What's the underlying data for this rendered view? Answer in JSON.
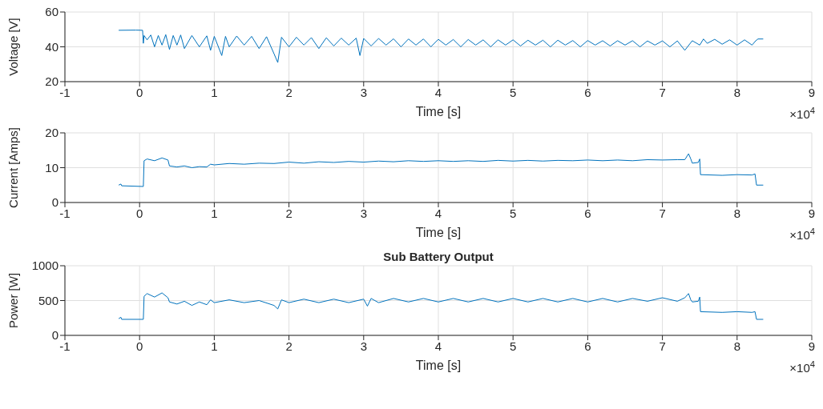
{
  "chart_data": [
    {
      "type": "line",
      "xlabel": "Time [s]",
      "ylabel": "Voltage [V]",
      "annotations": [
        "×10$^{4}$"
      ],
      "grid": true,
      "xlim": [
        -1,
        9
      ],
      "xticks": [
        -1,
        0,
        1,
        2,
        3,
        4,
        5,
        6,
        7,
        8,
        9
      ],
      "ylim": [
        20,
        60
      ],
      "yticks": [
        20,
        40,
        60
      ],
      "series": [
        {
          "color": "#0072bd",
          "x": [
            -0.28,
            -0.05,
            0.04,
            0.05,
            0.06,
            0.1,
            0.15,
            0.2,
            0.25,
            0.3,
            0.35,
            0.4,
            0.45,
            0.5,
            0.55,
            0.6,
            0.7,
            0.8,
            0.9,
            0.95,
            1,
            1.1,
            1.15,
            1.2,
            1.3,
            1.4,
            1.5,
            1.6,
            1.7,
            1.8,
            1.85,
            1.9,
            2,
            2.1,
            2.2,
            2.3,
            2.4,
            2.5,
            2.6,
            2.7,
            2.8,
            2.9,
            2.95,
            3,
            3.1,
            3.2,
            3.3,
            3.4,
            3.5,
            3.6,
            3.7,
            3.8,
            3.9,
            4,
            4.1,
            4.2,
            4.3,
            4.4,
            4.5,
            4.6,
            4.7,
            4.8,
            4.9,
            5,
            5.1,
            5.2,
            5.3,
            5.4,
            5.5,
            5.6,
            5.7,
            5.8,
            5.9,
            6,
            6.1,
            6.2,
            6.3,
            6.4,
            6.5,
            6.6,
            6.7,
            6.8,
            6.9,
            7,
            7.1,
            7.2,
            7.3,
            7.4,
            7.5,
            7.55,
            7.6,
            7.7,
            7.8,
            7.9,
            8,
            8.1,
            8.2,
            8.25,
            8.28,
            8.35
          ],
          "values": [
            49.5,
            49.6,
            49.5,
            42,
            46.5,
            44,
            46.8,
            40,
            46.5,
            41,
            47,
            38.5,
            46.5,
            41,
            46.8,
            39,
            46.5,
            40,
            46.3,
            38,
            46,
            35,
            46,
            40,
            46.2,
            41,
            46,
            39,
            45.8,
            36,
            31,
            45.5,
            40,
            45.5,
            41,
            45.3,
            39,
            45.2,
            40.5,
            45,
            41,
            45,
            35,
            44.8,
            40.5,
            44.8,
            41,
            44.6,
            40,
            44.5,
            41,
            44.5,
            40,
            44.3,
            41,
            44.2,
            40,
            44.2,
            41,
            44,
            40,
            44,
            41,
            44,
            40.5,
            43.8,
            41,
            43.8,
            40,
            43.8,
            41,
            43.6,
            40,
            43.6,
            41,
            43.5,
            40.5,
            43.5,
            41,
            43.5,
            40,
            43.4,
            41,
            43.4,
            40,
            43.4,
            38,
            43.5,
            41,
            44.5,
            42,
            44.3,
            41.5,
            44,
            41,
            44,
            41,
            43.5,
            44.5,
            44.5
          ]
        }
      ]
    },
    {
      "type": "line",
      "xlabel": "Time [s]",
      "ylabel": "Current [Amps]",
      "annotations": [
        "×10$^{4}$"
      ],
      "grid": true,
      "xlim": [
        -1,
        9
      ],
      "xticks": [
        -1,
        0,
        1,
        2,
        3,
        4,
        5,
        6,
        7,
        8,
        9
      ],
      "ylim": [
        0,
        20
      ],
      "yticks": [
        0,
        10,
        20
      ],
      "series": [
        {
          "color": "#0072bd",
          "x": [
            -0.28,
            -0.25,
            -0.24,
            0.05,
            0.06,
            0.1,
            0.2,
            0.3,
            0.38,
            0.4,
            0.5,
            0.6,
            0.7,
            0.8,
            0.9,
            0.95,
            1,
            1.2,
            1.4,
            1.6,
            1.8,
            2,
            2.2,
            2.4,
            2.6,
            2.8,
            3,
            3.2,
            3.4,
            3.6,
            3.8,
            4,
            4.2,
            4.4,
            4.6,
            4.8,
            5,
            5.2,
            5.4,
            5.6,
            5.8,
            6,
            6.2,
            6.4,
            6.6,
            6.8,
            7,
            7.2,
            7.3,
            7.35,
            7.38,
            7.4,
            7.48,
            7.5,
            7.51,
            7.8,
            8,
            8.2,
            8.24,
            8.26,
            8.35
          ],
          "values": [
            5,
            5.3,
            4.8,
            4.6,
            12,
            12.5,
            12,
            12.8,
            12.2,
            10.5,
            10.2,
            10.5,
            10,
            10.3,
            10.2,
            11,
            10.8,
            11.2,
            11,
            11.3,
            11.2,
            11.6,
            11.3,
            11.7,
            11.5,
            11.8,
            11.6,
            11.9,
            11.7,
            12,
            11.8,
            12,
            11.8,
            12,
            11.8,
            12.1,
            11.9,
            12.1,
            11.9,
            12.1,
            12,
            12.2,
            12,
            12.2,
            12,
            12.3,
            12.2,
            12.3,
            12.3,
            14,
            12.5,
            11.3,
            11.5,
            12.5,
            8,
            7.8,
            8,
            7.9,
            8.2,
            5,
            5
          ]
        }
      ]
    },
    {
      "type": "line",
      "title": "Sub Battery Output",
      "xlabel": "Time [s]",
      "ylabel": "Power [W]",
      "annotations": [
        "×10$^{4}$"
      ],
      "grid": true,
      "xlim": [
        -1,
        9
      ],
      "xticks": [
        -1,
        0,
        1,
        2,
        3,
        4,
        5,
        6,
        7,
        8,
        9
      ],
      "ylim": [
        0,
        1000
      ],
      "yticks": [
        0,
        500,
        1000
      ],
      "series": [
        {
          "color": "#0072bd",
          "x": [
            -0.28,
            -0.25,
            -0.24,
            0.05,
            0.06,
            0.1,
            0.2,
            0.3,
            0.38,
            0.4,
            0.5,
            0.6,
            0.7,
            0.8,
            0.9,
            0.95,
            1,
            1.2,
            1.4,
            1.6,
            1.8,
            1.85,
            1.9,
            2,
            2.2,
            2.4,
            2.6,
            2.8,
            3,
            3.05,
            3.1,
            3.2,
            3.4,
            3.6,
            3.8,
            4,
            4.2,
            4.4,
            4.6,
            4.8,
            5,
            5.2,
            5.4,
            5.6,
            5.8,
            6,
            6.2,
            6.4,
            6.6,
            6.8,
            7,
            7.2,
            7.3,
            7.35,
            7.38,
            7.4,
            7.48,
            7.5,
            7.51,
            7.8,
            8,
            8.2,
            8.24,
            8.26,
            8.35
          ],
          "values": [
            240,
            260,
            230,
            230,
            560,
            600,
            550,
            610,
            540,
            480,
            450,
            490,
            430,
            480,
            440,
            510,
            470,
            510,
            470,
            500,
            430,
            380,
            510,
            470,
            520,
            470,
            520,
            470,
            520,
            420,
            530,
            470,
            530,
            480,
            530,
            480,
            530,
            480,
            530,
            480,
            530,
            480,
            530,
            480,
            530,
            480,
            530,
            480,
            530,
            490,
            540,
            490,
            540,
            600,
            510,
            480,
            490,
            550,
            340,
            330,
            340,
            330,
            340,
            230,
            230
          ]
        }
      ]
    }
  ]
}
